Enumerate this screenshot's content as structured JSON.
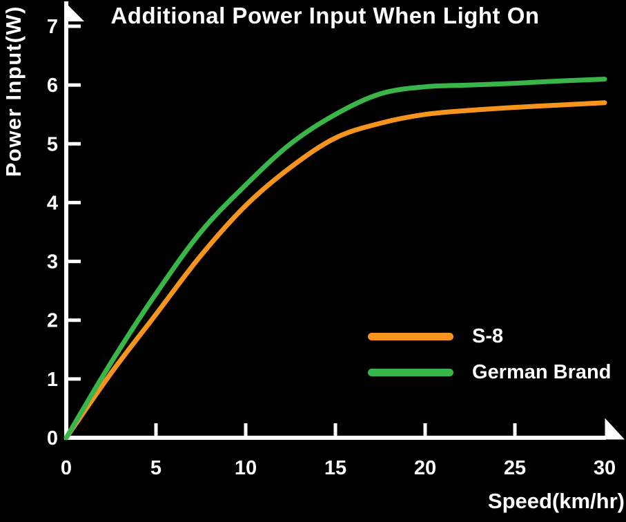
{
  "title": "Additional Power Input When Light On",
  "colors": {
    "background": "#000000",
    "text": "#FFFFFF",
    "axis": "#FFFFFF",
    "s8_orange": "#F7941D",
    "german_brand_green": "#39B54A"
  },
  "legend": {
    "items": [
      {
        "label": "S-8",
        "color": "#F7941D"
      },
      {
        "label": "German Brand",
        "color": "#39B54A"
      }
    ]
  },
  "chart_data": {
    "type": "line",
    "title": "Additional Power Input When Light On",
    "xlabel": "Speed(km/hr)",
    "ylabel": "Power Input(W)",
    "xlim": [
      0,
      30
    ],
    "ylim": [
      0,
      7
    ],
    "x_ticks": [
      0,
      5,
      10,
      15,
      20,
      25,
      30
    ],
    "y_ticks": [
      0,
      1,
      2,
      3,
      4,
      5,
      6,
      7
    ],
    "grid": false,
    "legend_position": "lower right",
    "x": [
      0,
      2.5,
      5,
      7.5,
      10,
      12.5,
      15,
      17.5,
      20,
      22.5,
      25,
      27.5,
      30
    ],
    "series": [
      {
        "name": "S-8",
        "color": "#F7941D",
        "values": [
          0,
          1.1,
          2.1,
          3.1,
          3.95,
          4.6,
          5.1,
          5.35,
          5.5,
          5.57,
          5.62,
          5.66,
          5.7
        ]
      },
      {
        "name": "German Brand",
        "color": "#39B54A",
        "values": [
          0,
          1.28,
          2.45,
          3.5,
          4.3,
          5.0,
          5.5,
          5.85,
          5.97,
          6.0,
          6.03,
          6.07,
          6.1
        ]
      }
    ]
  }
}
